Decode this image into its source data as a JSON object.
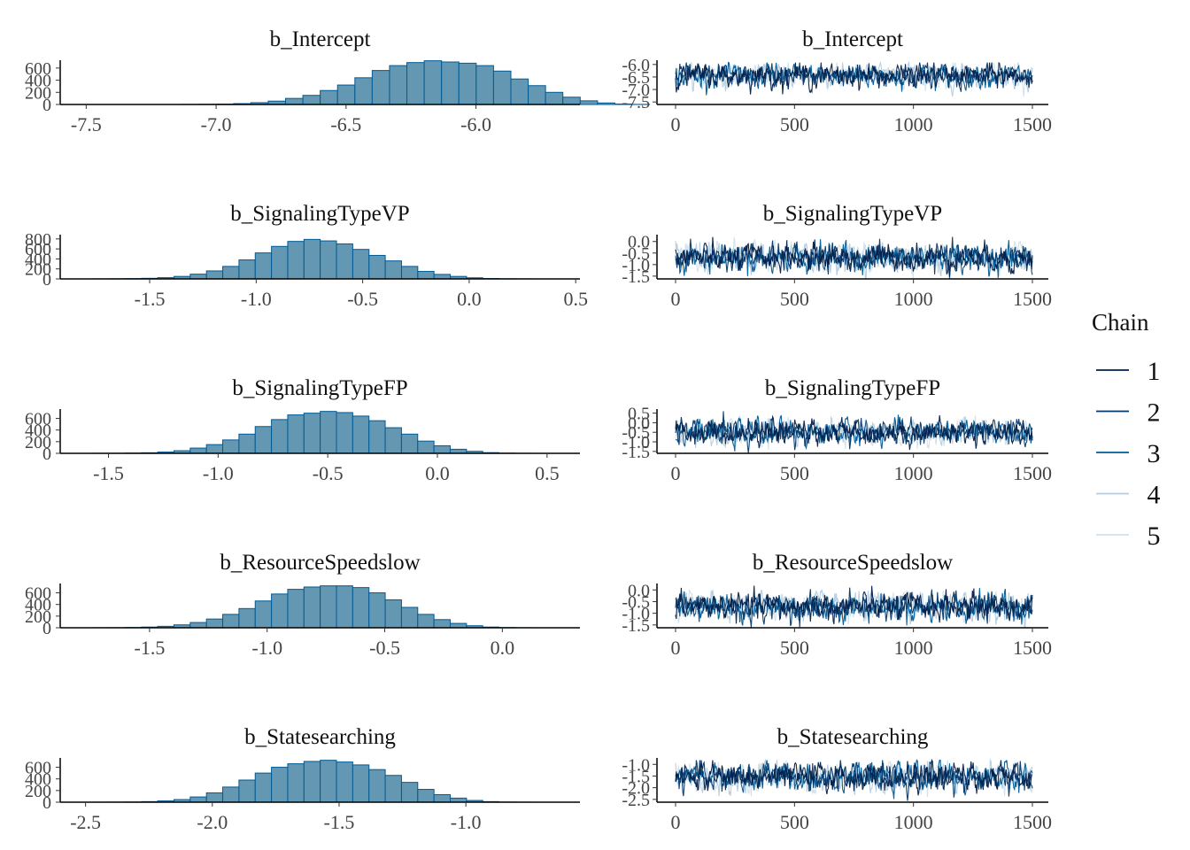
{
  "legend": {
    "title": "Chain",
    "items": [
      {
        "label": "1",
        "color": "#011f4b"
      },
      {
        "label": "2",
        "color": "#03396c"
      },
      {
        "label": "3",
        "color": "#005b96"
      },
      {
        "label": "4",
        "color": "#b3cde0"
      },
      {
        "label": "5",
        "color": "#d1e1ec"
      }
    ]
  },
  "chart_data": [
    {
      "type": "bar",
      "title": "b_Intercept",
      "xlim": [
        -7.6,
        -5.6
      ],
      "xticks": [
        -7.5,
        -7.0,
        -6.5,
        -6.0
      ],
      "xtick_labels": [
        "-7.5",
        "-7.0",
        "-6.5",
        "-6.0"
      ],
      "ylim": [
        0,
        700
      ],
      "yticks": [
        0,
        200,
        400,
        600
      ],
      "ytick_labels": [
        "0",
        "200",
        "400",
        "600"
      ],
      "bin_start": -7.6,
      "bin_width": 0.0667,
      "values": [
        0,
        0,
        0,
        0,
        0,
        0,
        0,
        1,
        3,
        6,
        14,
        30,
        55,
        100,
        150,
        230,
        320,
        440,
        560,
        640,
        690,
        720,
        700,
        680,
        640,
        550,
        420,
        310,
        200,
        120,
        60,
        25,
        8,
        2,
        0,
        0,
        0,
        0,
        0,
        0
      ],
      "fill": "#6497b1",
      "stroke": "#005b96"
    },
    {
      "type": "line",
      "title": "b_Intercept",
      "xlim": [
        0,
        1500
      ],
      "xticks": [
        0,
        500,
        1000,
        1500
      ],
      "xtick_labels": [
        "0",
        "500",
        "1000",
        "1500"
      ],
      "yticks": [
        -6.0,
        -6.5,
        -7.0,
        -7.5
      ],
      "ytick_labels": [
        "-6.0",
        "-6.5",
        "-7.0",
        "-7.5"
      ],
      "ylim": [
        -7.6,
        -5.9
      ],
      "band_center": -6.45,
      "band_spread": 0.22,
      "iterations": 1500
    },
    {
      "type": "bar",
      "title": "b_SignalingTypeVP",
      "xlim": [
        -1.92,
        0.52
      ],
      "xticks": [
        -1.5,
        -1.0,
        -0.5,
        0.0,
        0.5
      ],
      "xtick_labels": [
        "-1.5",
        "-1.0",
        "-0.5",
        "0.0",
        "0.5"
      ],
      "ylim": [
        0,
        850
      ],
      "yticks": [
        0,
        200,
        400,
        600,
        800
      ],
      "ytick_labels": [
        "0",
        "200",
        "400",
        "600",
        "800"
      ],
      "bin_start": -1.92,
      "bin_width": 0.0763,
      "values": [
        0,
        0,
        1,
        3,
        6,
        12,
        25,
        50,
        95,
        160,
        250,
        380,
        520,
        650,
        750,
        790,
        760,
        700,
        590,
        470,
        360,
        250,
        150,
        90,
        50,
        22,
        8,
        3,
        1,
        0,
        0,
        0
      ],
      "fill": "#6497b1",
      "stroke": "#005b96"
    },
    {
      "type": "line",
      "title": "b_SignalingTypeVP",
      "xlim": [
        0,
        1500
      ],
      "xticks": [
        0,
        500,
        1000,
        1500
      ],
      "xtick_labels": [
        "0",
        "500",
        "1000",
        "1500"
      ],
      "yticks": [
        0.0,
        -0.5,
        -1.0,
        -1.5
      ],
      "ytick_labels": [
        "0.0",
        "-0.5",
        "-1.0",
        "-1.5"
      ],
      "ylim": [
        -1.62,
        0.22
      ],
      "band_center": -0.7,
      "band_spread": 0.28,
      "iterations": 1500
    },
    {
      "type": "bar",
      "title": "b_SignalingTypeFP",
      "xlim": [
        -1.72,
        0.65
      ],
      "xticks": [
        -1.5,
        -1.0,
        -0.5,
        0.0,
        0.5
      ],
      "xtick_labels": [
        "-1.5",
        "-1.0",
        "-0.5",
        "0.0",
        "0.5"
      ],
      "ylim": [
        0,
        730
      ],
      "yticks": [
        0,
        200,
        400,
        600
      ],
      "ytick_labels": [
        "0",
        "200",
        "400",
        "600"
      ],
      "bin_start": -1.72,
      "bin_width": 0.0741,
      "values": [
        0,
        0,
        1,
        2,
        5,
        10,
        22,
        45,
        90,
        150,
        230,
        330,
        460,
        580,
        660,
        690,
        720,
        700,
        640,
        560,
        440,
        330,
        210,
        130,
        70,
        35,
        12,
        4,
        1,
        0,
        0,
        0
      ],
      "fill": "#6497b1",
      "stroke": "#005b96"
    },
    {
      "type": "line",
      "title": "b_SignalingTypeFP",
      "xlim": [
        0,
        1500
      ],
      "xticks": [
        0,
        500,
        1000,
        1500
      ],
      "xtick_labels": [
        "0",
        "500",
        "1000",
        "1500"
      ],
      "yticks": [
        0.5,
        0.0,
        -0.5,
        -1.0,
        -1.5
      ],
      "ytick_labels": [
        "0.5",
        "0.0",
        "-0.5",
        "-1.0",
        "-1.5"
      ],
      "ylim": [
        -1.6,
        0.62
      ],
      "band_center": -0.5,
      "band_spread": 0.3,
      "iterations": 1500
    },
    {
      "type": "bar",
      "title": "b_ResourceSpeedslow",
      "xlim": [
        -1.88,
        0.33
      ],
      "xticks": [
        -1.5,
        -1.0,
        -0.5,
        0.0
      ],
      "xtick_labels": [
        "-1.5",
        "-1.0",
        "-0.5",
        "0.0"
      ],
      "ylim": [
        0,
        730
      ],
      "yticks": [
        0,
        200,
        400,
        600
      ],
      "ytick_labels": [
        "0",
        "200",
        "400",
        "600"
      ],
      "bin_start": -1.88,
      "bin_width": 0.0691,
      "values": [
        0,
        0,
        1,
        2,
        5,
        12,
        25,
        50,
        90,
        150,
        230,
        330,
        460,
        580,
        660,
        700,
        720,
        720,
        690,
        600,
        480,
        350,
        230,
        140,
        75,
        35,
        12,
        4,
        1,
        0,
        0,
        0
      ],
      "fill": "#6497b1",
      "stroke": "#005b96"
    },
    {
      "type": "line",
      "title": "b_ResourceSpeedslow",
      "xlim": [
        0,
        1500
      ],
      "xticks": [
        0,
        500,
        1000,
        1500
      ],
      "xtick_labels": [
        "0",
        "500",
        "1000",
        "1500"
      ],
      "yticks": [
        0.0,
        -0.5,
        -1.0,
        -1.5
      ],
      "ytick_labels": [
        "0.0",
        "-0.5",
        "-1.0",
        "-1.5"
      ],
      "ylim": [
        -1.62,
        0.2
      ],
      "band_center": -0.72,
      "band_spread": 0.28,
      "iterations": 1500
    },
    {
      "type": "bar",
      "title": "b_Statesearching",
      "xlim": [
        -2.6,
        -0.55
      ],
      "xticks": [
        -2.5,
        -2.0,
        -1.5,
        -1.0
      ],
      "xtick_labels": [
        "-2.5",
        "-2.0",
        "-1.5",
        "-1.0"
      ],
      "ylim": [
        0,
        730
      ],
      "yticks": [
        0,
        200,
        400,
        600
      ],
      "ytick_labels": [
        "0",
        "200",
        "400",
        "600"
      ],
      "bin_start": -2.6,
      "bin_width": 0.0641,
      "values": [
        0,
        0,
        1,
        2,
        4,
        10,
        22,
        45,
        90,
        160,
        260,
        380,
        500,
        600,
        660,
        700,
        720,
        690,
        640,
        560,
        460,
        340,
        220,
        130,
        70,
        30,
        10,
        3,
        1,
        0,
        0,
        0
      ],
      "fill": "#6497b1",
      "stroke": "#005b96"
    },
    {
      "type": "line",
      "title": "b_Statesearching",
      "xlim": [
        0,
        1500
      ],
      "xticks": [
        0,
        500,
        1000,
        1500
      ],
      "xtick_labels": [
        "0",
        "500",
        "1000",
        "1500"
      ],
      "yticks": [
        -1.0,
        -1.5,
        -2.0,
        -2.5
      ],
      "ytick_labels": [
        "-1.0",
        "-1.5",
        "-2.0",
        "-2.5"
      ],
      "ylim": [
        -2.62,
        -0.8
      ],
      "band_center": -1.55,
      "band_spread": 0.28,
      "iterations": 1500
    }
  ]
}
